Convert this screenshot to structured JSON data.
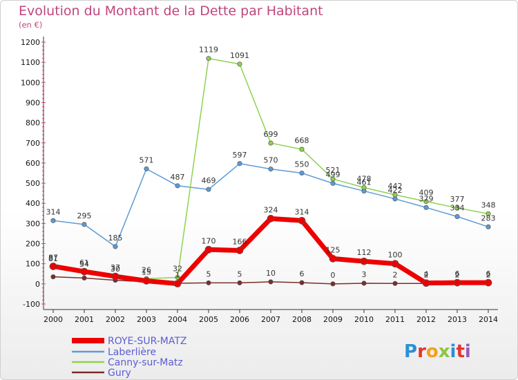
{
  "header": {
    "title": "Evolution du Montant de la Dette par Habitant",
    "subtitle": "(en €)"
  },
  "logo": {
    "text": "Proxiti",
    "colors": [
      "#2a8fd8",
      "#e8332e",
      "#f3a21b",
      "#8cc63f",
      "#2a8fd8",
      "#e8332e",
      "#9b59b6"
    ]
  },
  "chart_data": {
    "type": "line",
    "title": "Evolution du Montant de la Dette par Habitant",
    "subtitle": "(en €)",
    "xlabel": "",
    "ylabel": "",
    "ylim": [
      -100,
      1200
    ],
    "y_ticks": [
      -100,
      0,
      100,
      200,
      300,
      400,
      500,
      600,
      700,
      800,
      900,
      1000,
      1100,
      1200
    ],
    "grid": false,
    "legend_position": "bottom-left",
    "x": [
      2000,
      2001,
      2002,
      2003,
      2004,
      2005,
      2006,
      2007,
      2008,
      2009,
      2010,
      2011,
      2012,
      2013,
      2014
    ],
    "series": [
      {
        "name": "ROYE-SUR-MATZ",
        "color": "#ee0000",
        "width": 7,
        "values": [
          87,
          61,
          37,
          15,
          1,
          170,
          166,
          324,
          314,
          125,
          112,
          100,
          4,
          6,
          6
        ],
        "labels": [
          "87",
          "61",
          "37",
          "15",
          "1",
          "170",
          "166",
          "324",
          "314",
          "125",
          "112",
          "100",
          "4",
          "6",
          "6"
        ]
      },
      {
        "name": "Laberlière",
        "color": "#5b9bd5",
        "width": 1.5,
        "values": [
          314,
          295,
          185,
          571,
          487,
          469,
          597,
          570,
          550,
          499,
          461,
          422,
          379,
          334,
          283
        ],
        "labels": [
          "314",
          "295",
          "185",
          "571",
          "487",
          "469",
          "597",
          "570",
          "550",
          "499",
          "461",
          "422",
          "379",
          "334",
          "283"
        ]
      },
      {
        "name": "Canny-sur-Matz",
        "color": "#8fd14f",
        "width": 1.5,
        "values": [
          81,
          54,
          30,
          26,
          32,
          1119,
          1091,
          699,
          668,
          521,
          478,
          442,
          409,
          377,
          348
        ],
        "labels": [
          "81",
          "54",
          "30",
          "26",
          "32",
          "1119",
          "1091",
          "699",
          "668",
          "521",
          "478",
          "442",
          "409",
          "377",
          "348"
        ]
      },
      {
        "name": "Gury",
        "color": "#7b2b2b",
        "width": 1.5,
        "values": [
          35,
          29,
          18,
          10,
          3,
          5,
          5,
          10,
          6,
          0,
          3,
          2,
          2,
          2,
          2
        ],
        "labels": [
          "",
          "",
          "",
          "",
          "",
          "5",
          "5",
          "10",
          "6",
          "0",
          "3",
          "2",
          "2",
          "2",
          "2"
        ]
      }
    ]
  }
}
